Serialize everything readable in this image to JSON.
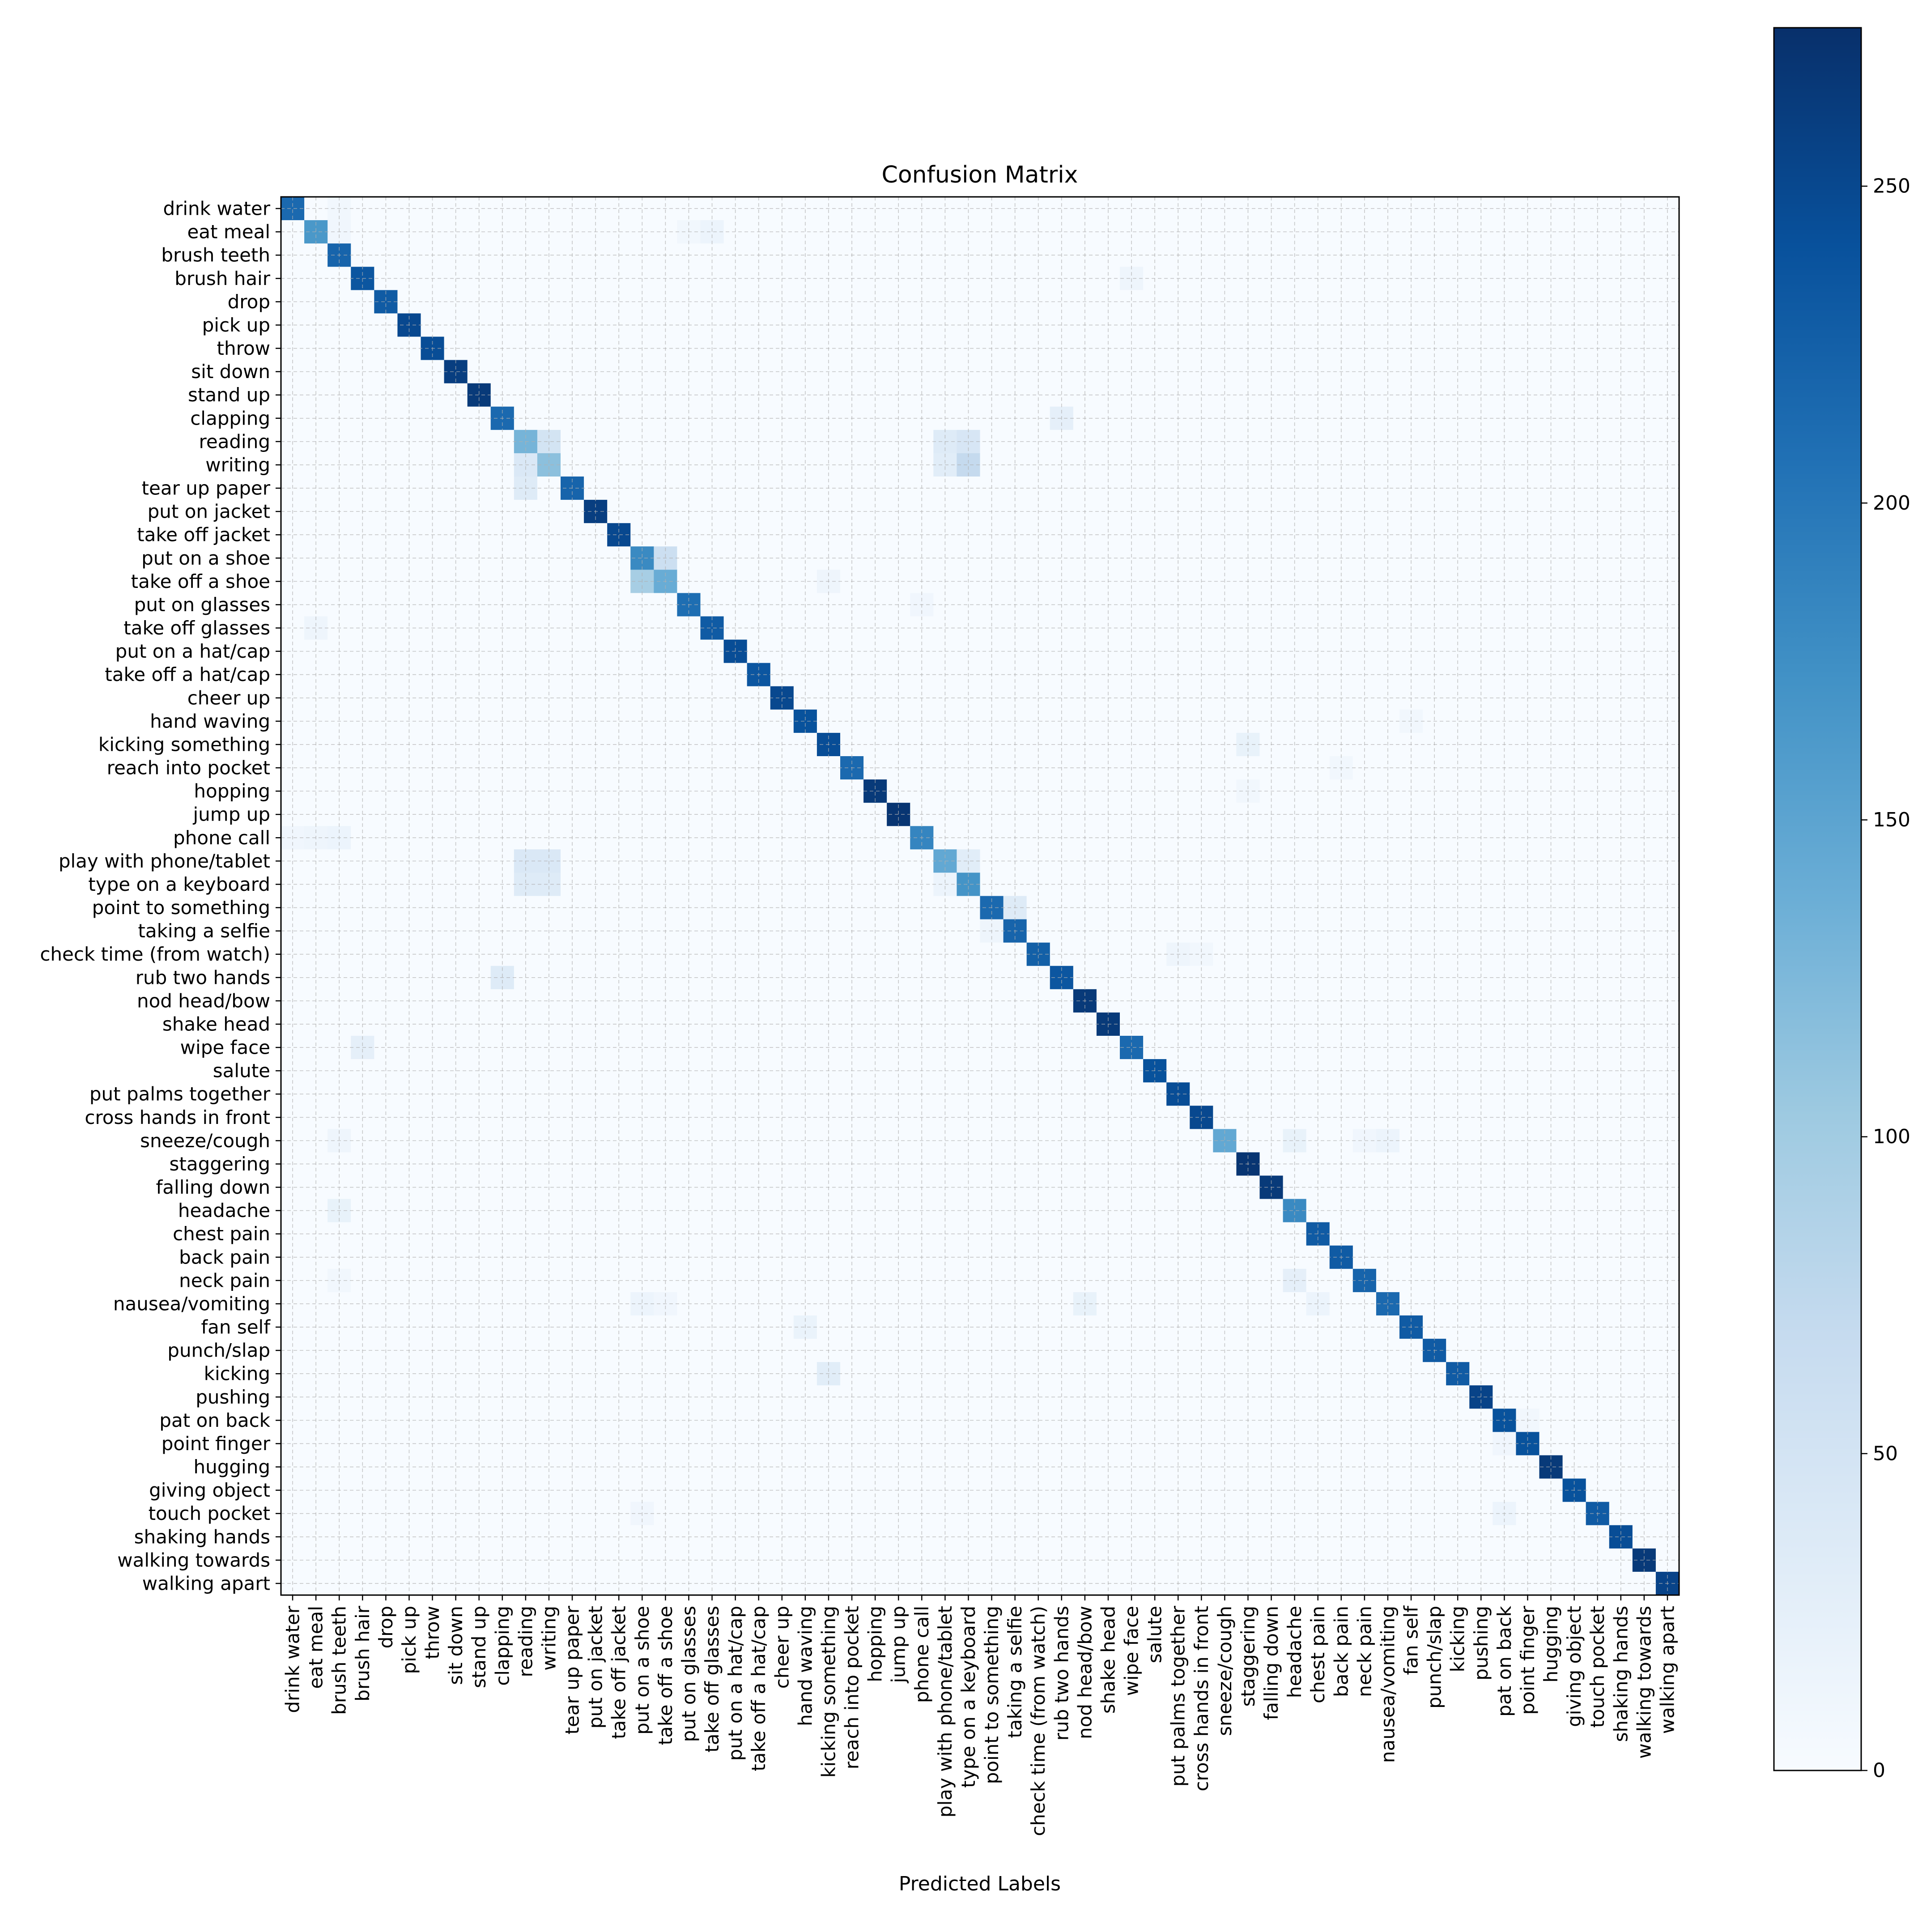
{
  "chart_data": {
    "type": "heatmap",
    "title": "Confusion Matrix",
    "xlabel": "Predicted Labels",
    "ylabel": "",
    "colormap": "Blues",
    "color_range": [
      0,
      275
    ],
    "colorbar_ticks": [
      0,
      50,
      100,
      150,
      200,
      250
    ],
    "grid": true,
    "labels": [
      "drink water",
      "eat meal",
      "brush teeth",
      "brush hair",
      "drop",
      "pick up",
      "throw",
      "sit down",
      "stand up",
      "clapping",
      "reading",
      "writing",
      "tear up paper",
      "put on jacket",
      "take off jacket",
      "put on a shoe",
      "take off a shoe",
      "put on glasses",
      "take off glasses",
      "put on a hat/cap",
      "take off a hat/cap",
      "cheer up",
      "hand waving",
      "kicking something",
      "reach into pocket",
      "hopping",
      "jump up",
      "phone call",
      "play with phone/tablet",
      "type on a keyboard",
      "point to something",
      "taking a selfie",
      "check time (from watch)",
      "rub two hands",
      "nod head/bow",
      "shake head",
      "wipe face",
      "salute",
      "put palms together",
      "cross hands in front",
      "sneeze/cough",
      "staggering",
      "falling down",
      "headache",
      "chest pain",
      "back pain",
      "neck pain",
      "nausea/vomiting",
      "fan self",
      "punch/slap",
      "kicking",
      "pushing",
      "pat on back",
      "point finger",
      "hugging",
      "giving object",
      "touch pocket",
      "shaking hands",
      "walking towards",
      "walking apart"
    ],
    "diagonal": [
      215,
      165,
      220,
      235,
      230,
      250,
      245,
      260,
      265,
      215,
      130,
      115,
      220,
      260,
      250,
      180,
      140,
      210,
      230,
      245,
      235,
      250,
      240,
      245,
      215,
      265,
      270,
      185,
      145,
      170,
      215,
      220,
      225,
      235,
      265,
      265,
      215,
      240,
      245,
      250,
      145,
      270,
      265,
      180,
      230,
      230,
      220,
      215,
      230,
      230,
      230,
      255,
      240,
      240,
      265,
      240,
      230,
      245,
      265,
      255
    ],
    "off_diagonal": [
      {
        "row": "eat meal",
        "col": "brush teeth",
        "value": 10
      },
      {
        "row": "drink water",
        "col": "brush teeth",
        "value": 8
      },
      {
        "row": "eat meal",
        "col": "take off glasses",
        "value": 15
      },
      {
        "row": "eat meal",
        "col": "put on glasses",
        "value": 8
      },
      {
        "row": "brush hair",
        "col": "wipe face",
        "value": 12
      },
      {
        "row": "clapping",
        "col": "rub two hands",
        "value": 25
      },
      {
        "row": "reading",
        "col": "writing",
        "value": 50
      },
      {
        "row": "reading",
        "col": "play with phone/tablet",
        "value": 35
      },
      {
        "row": "reading",
        "col": "type on a keyboard",
        "value": 45
      },
      {
        "row": "writing",
        "col": "reading",
        "value": 40
      },
      {
        "row": "writing",
        "col": "play with phone/tablet",
        "value": 30
      },
      {
        "row": "writing",
        "col": "type on a keyboard",
        "value": 70
      },
      {
        "row": "tear up paper",
        "col": "reading",
        "value": 35
      },
      {
        "row": "put on a shoe",
        "col": "take off a shoe",
        "value": 60
      },
      {
        "row": "take off a shoe",
        "col": "put on a shoe",
        "value": 95
      },
      {
        "row": "take off a shoe",
        "col": "kicking something",
        "value": 12
      },
      {
        "row": "put on glasses",
        "col": "phone call",
        "value": 10
      },
      {
        "row": "take off glasses",
        "col": "eat meal",
        "value": 12
      },
      {
        "row": "hand waving",
        "col": "fan self",
        "value": 8
      },
      {
        "row": "kicking something",
        "col": "staggering",
        "value": 20
      },
      {
        "row": "reach into pocket",
        "col": "back pain",
        "value": 8
      },
      {
        "row": "hopping",
        "col": "staggering",
        "value": 8
      },
      {
        "row": "phone call",
        "col": "drink water",
        "value": 10
      },
      {
        "row": "phone call",
        "col": "eat meal",
        "value": 12
      },
      {
        "row": "phone call",
        "col": "brush teeth",
        "value": 15
      },
      {
        "row": "play with phone/tablet",
        "col": "reading",
        "value": 40
      },
      {
        "row": "play with phone/tablet",
        "col": "writing",
        "value": 40
      },
      {
        "row": "play with phone/tablet",
        "col": "type on a keyboard",
        "value": 30
      },
      {
        "row": "type on a keyboard",
        "col": "reading",
        "value": 35
      },
      {
        "row": "type on a keyboard",
        "col": "writing",
        "value": 35
      },
      {
        "row": "type on a keyboard",
        "col": "play with phone/tablet",
        "value": 15
      },
      {
        "row": "point to something",
        "col": "taking a selfie",
        "value": 35
      },
      {
        "row": "taking a selfie",
        "col": "point to something",
        "value": 12
      },
      {
        "row": "check time (from watch)",
        "col": "put palms together",
        "value": 12
      },
      {
        "row": "check time (from watch)",
        "col": "cross hands in front",
        "value": 8
      },
      {
        "row": "rub two hands",
        "col": "clapping",
        "value": 35
      },
      {
        "row": "wipe face",
        "col": "brush hair",
        "value": 25
      },
      {
        "row": "sneeze/cough",
        "col": "headache",
        "value": 20
      },
      {
        "row": "sneeze/cough",
        "col": "nausea/vomiting",
        "value": 15
      },
      {
        "row": "sneeze/cough",
        "col": "neck pain",
        "value": 10
      },
      {
        "row": "sneeze/cough",
        "col": "brush teeth",
        "value": 12
      },
      {
        "row": "headache",
        "col": "brush teeth",
        "value": 20
      },
      {
        "row": "neck pain",
        "col": "headache",
        "value": 25
      },
      {
        "row": "neck pain",
        "col": "brush teeth",
        "value": 8
      },
      {
        "row": "nausea/vomiting",
        "col": "nod head/bow",
        "value": 20
      },
      {
        "row": "nausea/vomiting",
        "col": "put on a shoe",
        "value": 15
      },
      {
        "row": "nausea/vomiting",
        "col": "take off a shoe",
        "value": 10
      },
      {
        "row": "nausea/vomiting",
        "col": "chest pain",
        "value": 15
      },
      {
        "row": "fan self",
        "col": "hand waving",
        "value": 18
      },
      {
        "row": "kicking",
        "col": "kicking something",
        "value": 30
      },
      {
        "row": "point finger",
        "col": "pat on back",
        "value": 10
      },
      {
        "row": "pat on back",
        "col": "point finger",
        "value": 8
      },
      {
        "row": "touch pocket",
        "col": "pat on back",
        "value": 15
      },
      {
        "row": "touch pocket",
        "col": "put on a shoe",
        "value": 10
      }
    ]
  }
}
